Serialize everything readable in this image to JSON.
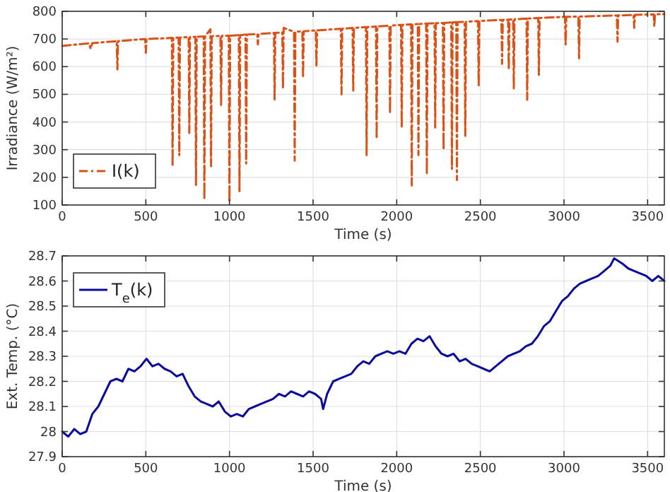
{
  "chart_data": [
    {
      "type": "line",
      "xlabel": "Time (s)",
      "ylabel": "Irradiance (W/m²)",
      "xlim": [
        0,
        3600
      ],
      "xticks": [
        0,
        500,
        1000,
        1500,
        2000,
        2500,
        3000,
        3500
      ],
      "ylim": [
        100,
        800
      ],
      "yticks": [
        100,
        200,
        300,
        400,
        500,
        600,
        700,
        800
      ],
      "grid": true,
      "legend": "bottom left",
      "line_style": "dashdot",
      "series": [
        {
          "name": "I(k)",
          "color": "#d95319",
          "x": [
            0,
            160,
            170,
            180,
            326,
            330,
            334,
            496,
            500,
            504,
            600,
            656,
            660,
            664,
            696,
            700,
            704,
            756,
            760,
            764,
            796,
            800,
            804,
            846,
            850,
            854,
            886,
            890,
            894,
            946,
            950,
            954,
            996,
            1000,
            1004,
            1056,
            1060,
            1064,
            1096,
            1100,
            1104,
            1166,
            1170,
            1174,
            1266,
            1270,
            1274,
            1316,
            1320,
            1324,
            1386,
            1390,
            1394,
            1436,
            1440,
            1444,
            1516,
            1520,
            1524,
            1666,
            1670,
            1674,
            1736,
            1740,
            1744,
            1816,
            1820,
            1824,
            1876,
            1880,
            1884,
            1956,
            1960,
            1964,
            2026,
            2030,
            2034,
            2086,
            2090,
            2094,
            2126,
            2130,
            2134,
            2176,
            2180,
            2184,
            2226,
            2230,
            2234,
            2276,
            2280,
            2284,
            2326,
            2330,
            2334,
            2356,
            2360,
            2364,
            2406,
            2410,
            2414,
            2486,
            2490,
            2494,
            2626,
            2630,
            2634,
            2666,
            2670,
            2674,
            2696,
            2700,
            2704,
            2776,
            2780,
            2784,
            2846,
            2850,
            2854,
            3006,
            3010,
            3014,
            3086,
            3090,
            3094,
            3316,
            3320,
            3324,
            3416,
            3420,
            3424,
            3536,
            3540,
            3544,
            3600
          ],
          "values": [
            675,
            684,
            665,
            685,
            692,
            590,
            692,
            700,
            650,
            700,
            702,
            704,
            240,
            704,
            705,
            280,
            705,
            707,
            360,
            707,
            708,
            170,
            708,
            709,
            120,
            709,
            735,
            240,
            710,
            711,
            460,
            711,
            712,
            110,
            712,
            714,
            150,
            714,
            716,
            250,
            716,
            718,
            680,
            718,
            722,
            480,
            722,
            724,
            520,
            740,
            726,
            260,
            726,
            728,
            560,
            728,
            731,
            600,
            731,
            737,
            500,
            737,
            740,
            510,
            740,
            743,
            280,
            743,
            745,
            340,
            745,
            748,
            430,
            748,
            751,
            380,
            751,
            753,
            170,
            753,
            754,
            280,
            754,
            756,
            210,
            756,
            757,
            380,
            757,
            758,
            300,
            758,
            760,
            230,
            760,
            761,
            190,
            761,
            762,
            350,
            762,
            765,
            530,
            765,
            769,
            610,
            769,
            770,
            590,
            770,
            771,
            520,
            771,
            774,
            480,
            774,
            776,
            570,
            776,
            780,
            680,
            780,
            781,
            630,
            781,
            785,
            690,
            785,
            787,
            740,
            787,
            789,
            745,
            789,
            790
          ]
        }
      ]
    },
    {
      "type": "line",
      "xlabel": "Time (s)",
      "ylabel": "Ext. Temp. (°C)",
      "xlim": [
        0,
        3600
      ],
      "xticks": [
        0,
        500,
        1000,
        1500,
        2000,
        2500,
        3000,
        3500
      ],
      "ylim": [
        27.9,
        28.7
      ],
      "yticks": [
        27.9,
        28,
        28.1,
        28.2,
        28.3,
        28.4,
        28.5,
        28.6,
        28.7
      ],
      "grid": true,
      "legend": "top left",
      "line_style": "solid",
      "series": [
        {
          "name": "T$_{e}$(k)",
          "color": "#0a0a9c",
          "x": [
            0,
            36,
            72,
            108,
            144,
            180,
            216,
            252,
            288,
            324,
            360,
            396,
            432,
            468,
            504,
            540,
            576,
            612,
            648,
            684,
            720,
            756,
            792,
            828,
            864,
            900,
            936,
            972,
            1008,
            1044,
            1080,
            1116,
            1152,
            1188,
            1224,
            1260,
            1296,
            1332,
            1368,
            1404,
            1440,
            1476,
            1512,
            1548,
            1560,
            1584,
            1620,
            1656,
            1692,
            1728,
            1764,
            1800,
            1836,
            1872,
            1908,
            1944,
            1980,
            2016,
            2052,
            2088,
            2124,
            2160,
            2196,
            2232,
            2268,
            2304,
            2340,
            2376,
            2412,
            2448,
            2484,
            2520,
            2556,
            2592,
            2628,
            2664,
            2700,
            2736,
            2772,
            2808,
            2844,
            2880,
            2916,
            2952,
            2988,
            3024,
            3060,
            3096,
            3132,
            3168,
            3204,
            3240,
            3276,
            3300,
            3348,
            3384,
            3420,
            3456,
            3492,
            3528,
            3564,
            3600
          ],
          "values": [
            28,
            27.98,
            28.01,
            27.99,
            28,
            28.07,
            28.1,
            28.15,
            28.2,
            28.21,
            28.2,
            28.25,
            28.24,
            28.26,
            28.29,
            28.26,
            28.27,
            28.25,
            28.24,
            28.22,
            28.23,
            28.18,
            28.14,
            28.12,
            28.11,
            28.1,
            28.12,
            28.08,
            28.06,
            28.07,
            28.06,
            28.09,
            28.1,
            28.11,
            28.12,
            28.13,
            28.15,
            28.14,
            28.16,
            28.15,
            28.14,
            28.16,
            28.15,
            28.13,
            28.09,
            28.15,
            28.2,
            28.21,
            28.22,
            28.23,
            28.26,
            28.28,
            28.27,
            28.3,
            28.31,
            28.32,
            28.31,
            28.32,
            28.31,
            28.35,
            28.37,
            28.36,
            28.38,
            28.34,
            28.31,
            28.3,
            28.31,
            28.28,
            28.29,
            28.27,
            28.26,
            28.25,
            28.24,
            28.26,
            28.28,
            28.3,
            28.31,
            28.32,
            28.34,
            28.35,
            28.38,
            28.42,
            28.44,
            28.48,
            28.52,
            28.54,
            28.57,
            28.59,
            28.6,
            28.61,
            28.62,
            28.64,
            28.66,
            28.69,
            28.67,
            28.65,
            28.64,
            28.63,
            28.62,
            28.6,
            28.62,
            28.6
          ]
        }
      ]
    }
  ]
}
